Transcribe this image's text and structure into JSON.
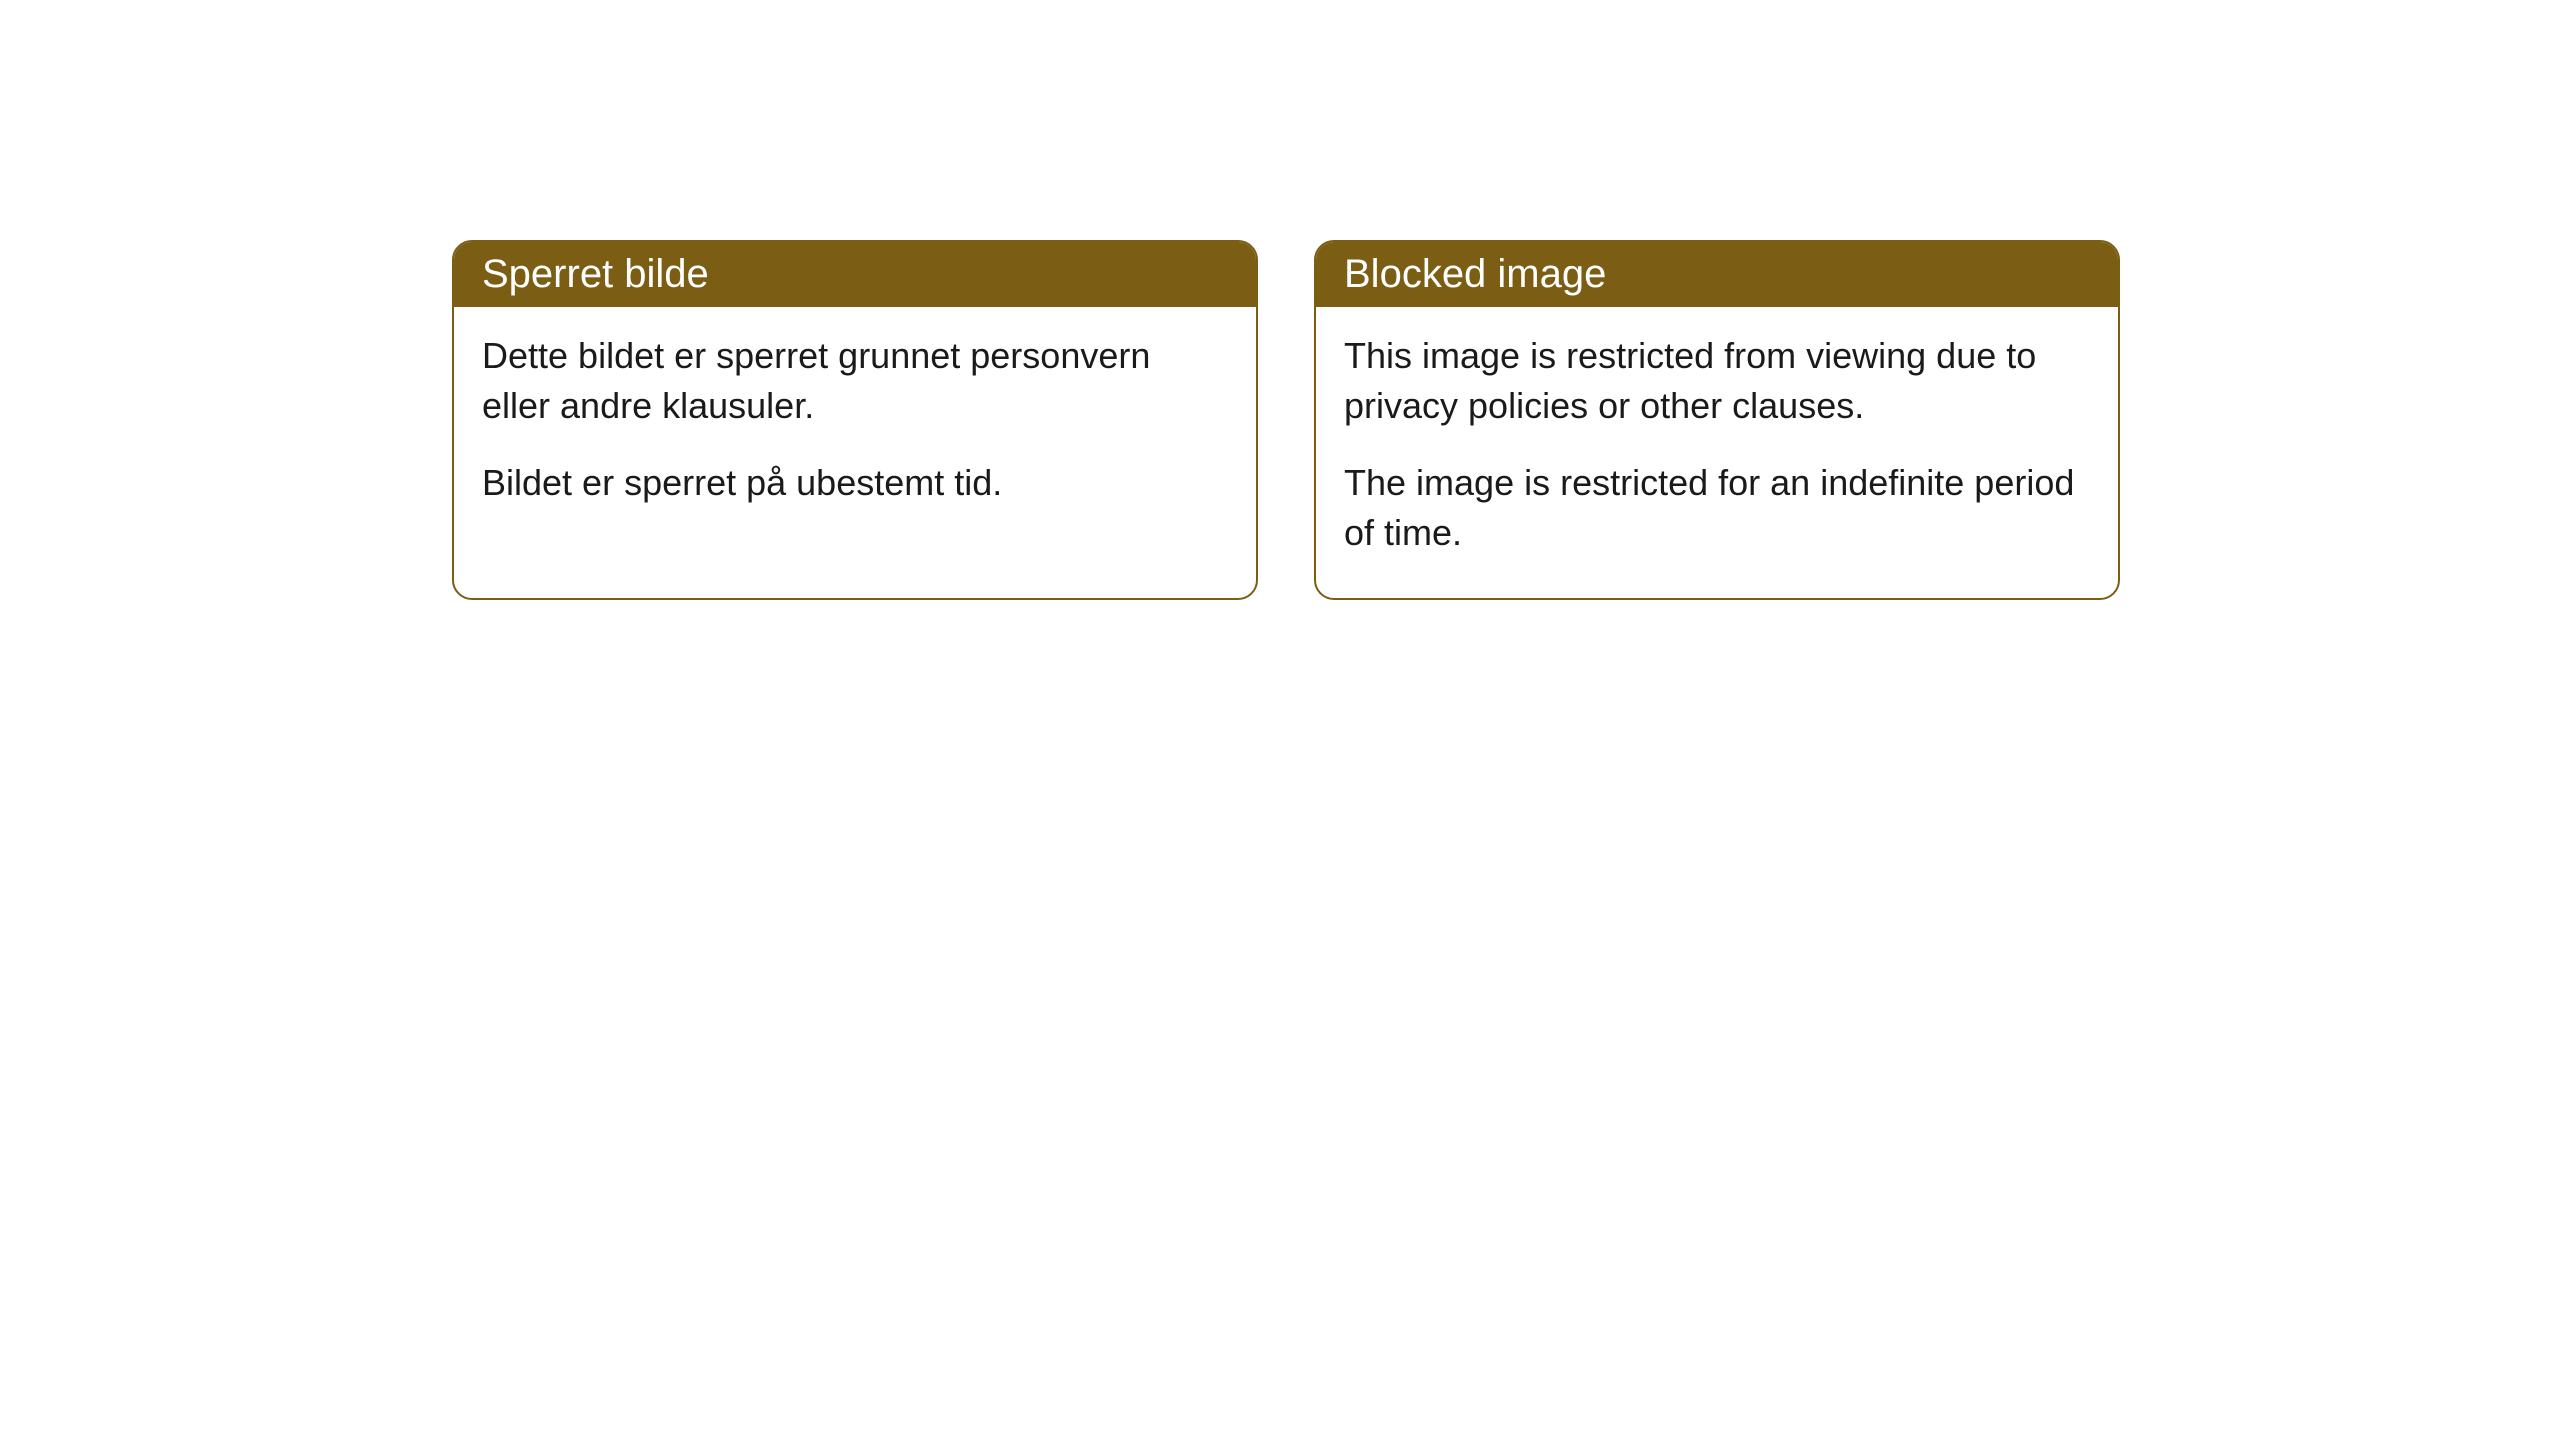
{
  "cards": [
    {
      "title": "Sperret bilde",
      "paragraph1": "Dette bildet er sperret grunnet personvern eller andre klausuler.",
      "paragraph2": "Bildet er sperret på ubestemt tid."
    },
    {
      "title": "Blocked image",
      "paragraph1": "This image is restricted from viewing due to privacy policies or other clauses.",
      "paragraph2": "The image is restricted for an indefinite period of time."
    }
  ],
  "style": {
    "header_background": "#7b5d13",
    "header_text_color": "#ffffff",
    "border_color": "#7b5d13",
    "body_text_color": "#1a1a1a",
    "body_background": "#ffffff",
    "border_radius": 20,
    "header_fontsize": 40,
    "body_fontsize": 36
  }
}
